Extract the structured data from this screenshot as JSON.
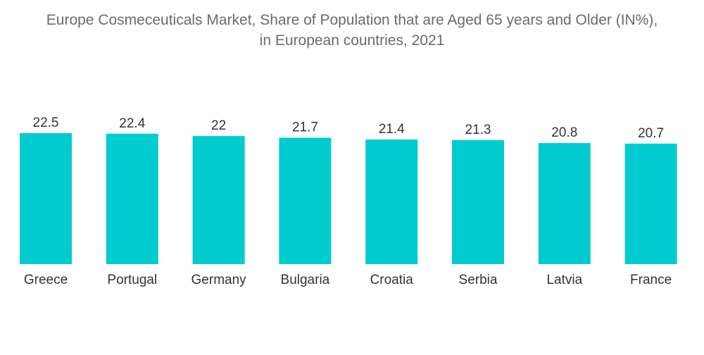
{
  "chart_data": {
    "type": "bar",
    "title_line1": "Europe Cosmeceuticals Market, Share of Population that are Aged 65 years and Older (IN%),",
    "title_line2": "in European countries, 2021",
    "categories": [
      "Greece",
      "Portugal",
      "Germany",
      "Bulgaria",
      "Croatia",
      "Serbia",
      "Latvia",
      "France"
    ],
    "values": [
      22.5,
      22.4,
      22,
      21.7,
      21.4,
      21.3,
      20.8,
      20.7
    ],
    "value_labels": [
      "22.5",
      "22.4",
      "22",
      "21.7",
      "21.4",
      "21.3",
      "20.8",
      "20.7"
    ],
    "xlabel": "",
    "ylabel": "",
    "ylim": [
      0,
      22.5
    ],
    "grid": false,
    "legend": "none",
    "bar_color": "#00ccd0"
  }
}
